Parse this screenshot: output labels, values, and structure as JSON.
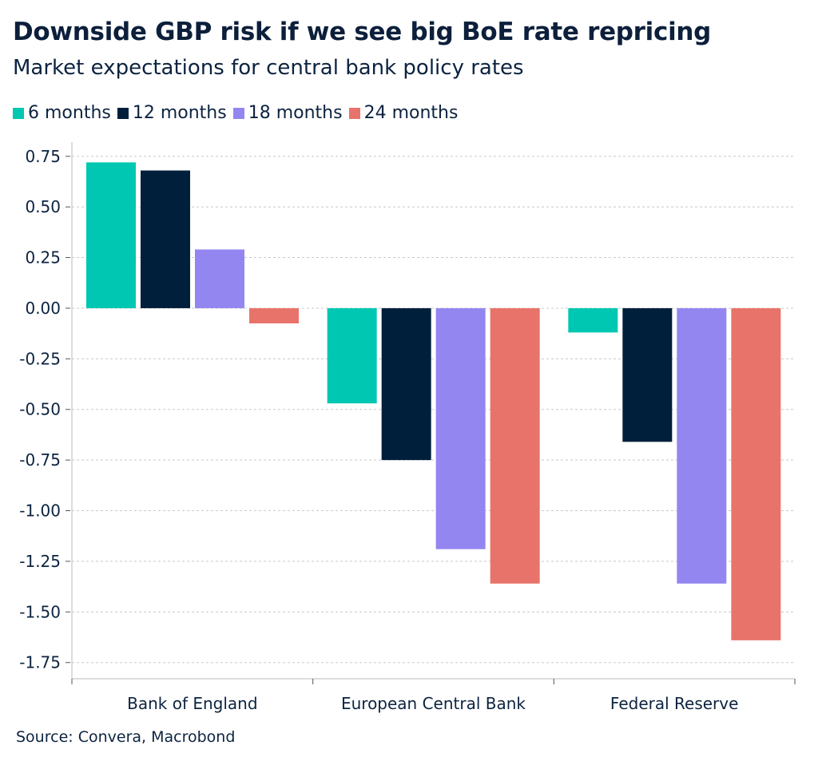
{
  "title": "Downside GBP risk if we see big BoE rate repricing",
  "subtitle": "Market expectations for central bank policy rates",
  "source": "Source: Convera, Macrobond",
  "chart_data": {
    "type": "bar",
    "title": "Downside GBP risk if we see big BoE rate repricing",
    "subtitle": "Market expectations for central bank policy rates",
    "categories": [
      "Bank of England",
      "European Central Bank",
      "Federal Reserve"
    ],
    "series": [
      {
        "name": "6 months",
        "color": "#00c7b1",
        "values": [
          0.72,
          -0.47,
          -0.12
        ]
      },
      {
        "name": "12 months",
        "color": "#001f3b",
        "values": [
          0.68,
          -0.75,
          -0.66
        ]
      },
      {
        "name": "18 months",
        "color": "#9486f0",
        "values": [
          0.29,
          -1.19,
          -1.36
        ]
      },
      {
        "name": "24 months",
        "color": "#e8736a",
        "values": [
          -0.075,
          -1.36,
          -1.64
        ]
      }
    ],
    "yticks": [
      "0.75",
      "0.50",
      "0.25",
      "0.00",
      "-0.25",
      "-0.50",
      "-0.75",
      "-1.00",
      "-1.25",
      "-1.50",
      "-1.75"
    ],
    "ylim": [
      -1.83,
      0.82
    ],
    "grid": true,
    "legend": "top-left"
  }
}
